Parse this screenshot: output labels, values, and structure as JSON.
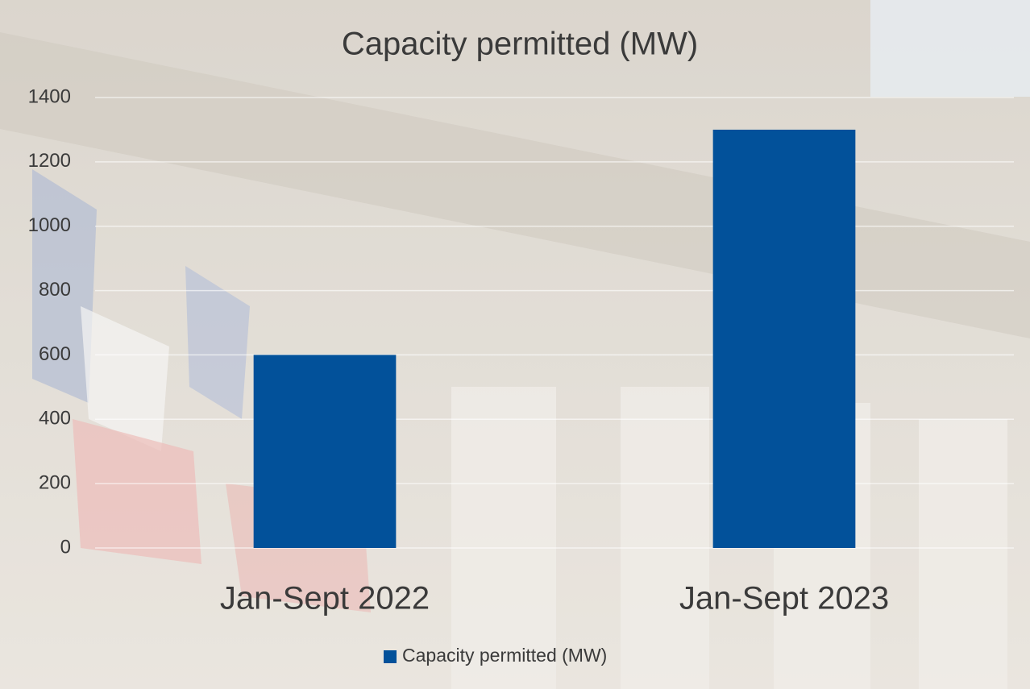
{
  "chart_data": {
    "type": "bar",
    "title": "Capacity permitted (MW)",
    "categories": [
      "Jan-Sept 2022",
      "Jan-Sept 2023"
    ],
    "series": [
      {
        "name": "Capacity permitted (MW)",
        "color": "#02519a",
        "values": [
          600,
          1300
        ]
      }
    ],
    "ylim": [
      0,
      1400
    ],
    "yticks": [
      0,
      200,
      400,
      600,
      800,
      1000,
      1200,
      1400
    ],
    "grid": true,
    "legend": "bottom"
  }
}
